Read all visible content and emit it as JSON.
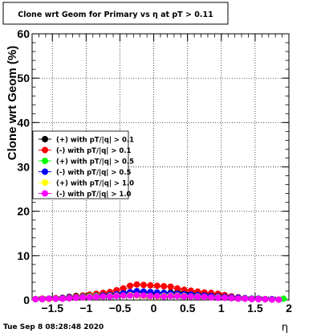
{
  "chart_data": {
    "type": "scatter",
    "title": "Clone wrt Geom for Primary vs   η at pT > 0.11",
    "xlabel": "η",
    "ylabel": "Clone wrt Geom (%)",
    "xlim": [
      -1.8,
      2.0
    ],
    "ylim": [
      0,
      60
    ],
    "x_ticks": [
      -1.5,
      -1,
      -0.5,
      0,
      0.5,
      1,
      1.5,
      2
    ],
    "x_tick_labels": [
      "−1.5",
      "−1",
      "−0.5",
      "0",
      "0.5",
      "1",
      "1.5",
      "2"
    ],
    "y_ticks": [
      0,
      10,
      20,
      30,
      40,
      50,
      60
    ],
    "y_tick_labels": [
      "0",
      "10",
      "20",
      "30",
      "40",
      "50",
      "60"
    ],
    "grid": true,
    "legend_position": "middle-left",
    "timestamp": "Tue Sep  8 08:28:48 2020",
    "series": [
      {
        "name": "(+) with pT/|q| > 0.1",
        "color": "#000000",
        "x": [
          -1.75,
          -1.65,
          -1.55,
          -1.45,
          -1.35,
          -1.25,
          -1.15,
          -1.05,
          -0.95,
          -0.85,
          -0.75,
          -0.65,
          -0.55,
          -0.45,
          -0.35,
          -0.25,
          -0.15,
          -0.05,
          0.05,
          0.15,
          0.25,
          0.35,
          0.45,
          0.55,
          0.65,
          0.75,
          0.85,
          0.95,
          1.05,
          1.15,
          1.25,
          1.35,
          1.45,
          1.55,
          1.65,
          1.75,
          1.85
        ],
        "y": [
          0.2,
          0.3,
          0.3,
          0.4,
          0.5,
          0.7,
          0.9,
          1.0,
          1.1,
          1.2,
          1.3,
          1.4,
          1.5,
          1.6,
          1.7,
          1.8,
          1.7,
          1.6,
          1.5,
          1.6,
          1.7,
          1.8,
          1.7,
          1.6,
          1.5,
          1.4,
          1.3,
          1.2,
          1.0,
          0.8,
          0.6,
          0.4,
          0.3,
          0.3,
          0.2,
          0.1,
          0.1
        ]
      },
      {
        "name": "(-) with pT/|q| > 0.1",
        "color": "#ff0000",
        "x": [
          -1.75,
          -1.65,
          -1.55,
          -1.45,
          -1.35,
          -1.25,
          -1.15,
          -1.05,
          -0.95,
          -0.85,
          -0.75,
          -0.65,
          -0.55,
          -0.45,
          -0.35,
          -0.25,
          -0.15,
          -0.05,
          0.05,
          0.15,
          0.25,
          0.35,
          0.45,
          0.55,
          0.65,
          0.75,
          0.85,
          0.95,
          1.05,
          1.15,
          1.25,
          1.35,
          1.45,
          1.55,
          1.65,
          1.75,
          1.85
        ],
        "y": [
          0.2,
          0.3,
          0.3,
          0.4,
          0.5,
          0.6,
          0.8,
          1.0,
          1.2,
          1.4,
          1.6,
          1.8,
          2.2,
          2.6,
          3.2,
          3.5,
          3.4,
          3.3,
          3.2,
          3.1,
          3.0,
          2.6,
          2.3,
          2.1,
          1.9,
          1.7,
          1.6,
          1.4,
          1.1,
          0.8,
          0.6,
          0.4,
          0.3,
          0.3,
          0.2,
          0.2,
          0.1
        ]
      },
      {
        "name": "(+) with pT/|q| > 0.5",
        "color": "#00ff00",
        "x": [
          -1.75,
          -1.65,
          -1.55,
          -1.45,
          -1.35,
          -1.25,
          -1.15,
          -1.05,
          -0.95,
          -0.85,
          -0.75,
          -0.65,
          -0.55,
          -0.45,
          -0.35,
          -0.25,
          -0.15,
          -0.05,
          0.05,
          0.15,
          0.25,
          0.35,
          0.45,
          0.55,
          0.65,
          0.75,
          0.85,
          0.95,
          1.05,
          1.15,
          1.25,
          1.35,
          1.45,
          1.55,
          1.65,
          1.75,
          1.92
        ],
        "y": [
          0.2,
          0.2,
          0.3,
          0.3,
          0.4,
          0.5,
          0.6,
          0.8,
          0.9,
          1.0,
          1.0,
          1.1,
          1.2,
          1.2,
          1.3,
          1.2,
          1.1,
          1.0,
          1.0,
          1.1,
          1.2,
          1.2,
          1.1,
          1.0,
          1.0,
          0.9,
          0.8,
          0.7,
          0.6,
          0.5,
          0.4,
          0.3,
          0.3,
          0.2,
          0.2,
          0.2,
          0.3
        ]
      },
      {
        "name": "(-) with pT/|q| > 0.5",
        "color": "#0000ff",
        "x": [
          -1.75,
          -1.65,
          -1.55,
          -1.45,
          -1.35,
          -1.25,
          -1.15,
          -1.05,
          -0.95,
          -0.85,
          -0.75,
          -0.65,
          -0.55,
          -0.45,
          -0.35,
          -0.25,
          -0.15,
          -0.05,
          0.05,
          0.15,
          0.25,
          0.35,
          0.45,
          0.55,
          0.65,
          0.75,
          0.85,
          0.95,
          1.05,
          1.15,
          1.25,
          1.35,
          1.45,
          1.55,
          1.65,
          1.75,
          1.85
        ],
        "y": [
          0.2,
          0.2,
          0.3,
          0.3,
          0.4,
          0.5,
          0.6,
          0.7,
          0.8,
          0.9,
          1.0,
          1.1,
          1.3,
          1.5,
          1.8,
          2.0,
          1.9,
          1.8,
          1.7,
          1.6,
          1.5,
          1.4,
          1.3,
          1.2,
          1.1,
          1.0,
          0.9,
          0.8,
          0.7,
          0.6,
          0.5,
          0.4,
          0.3,
          0.3,
          0.2,
          0.2,
          0.1
        ]
      },
      {
        "name": "(+) with pT/|q| > 1.0",
        "color": "#ffff00",
        "x": [
          -1.75,
          -1.65,
          -1.55,
          -1.45,
          -1.35,
          -1.25,
          -1.15,
          -1.05,
          -0.95,
          -0.85,
          -0.75,
          -0.65,
          -0.55,
          -0.45,
          -0.35,
          -0.25,
          -0.15,
          -0.05,
          0.05,
          0.15,
          0.25,
          0.35,
          0.45,
          0.55,
          0.65,
          0.75,
          0.85,
          0.95,
          1.05,
          1.15,
          1.25,
          1.35,
          1.45,
          1.55,
          1.65,
          1.75,
          1.85
        ],
        "y": [
          0.2,
          0.2,
          0.2,
          0.3,
          0.3,
          0.4,
          0.5,
          0.6,
          0.7,
          0.8,
          0.8,
          0.9,
          1.0,
          1.0,
          1.1,
          1.0,
          0.9,
          0.8,
          0.8,
          0.9,
          1.0,
          1.0,
          0.9,
          0.8,
          0.8,
          0.7,
          0.6,
          0.6,
          0.5,
          0.4,
          0.3,
          0.3,
          0.2,
          0.2,
          0.2,
          0.1,
          0.1
        ]
      },
      {
        "name": "(-) with pT/|q| > 1.0",
        "color": "#ff00ff",
        "x": [
          -1.75,
          -1.65,
          -1.55,
          -1.45,
          -1.35,
          -1.25,
          -1.15,
          -1.05,
          -0.95,
          -0.85,
          -0.75,
          -0.65,
          -0.55,
          -0.45,
          -0.35,
          -0.25,
          -0.15,
          -0.05,
          0.05,
          0.15,
          0.25,
          0.35,
          0.45,
          0.55,
          0.65,
          0.75,
          0.85,
          0.95,
          1.05,
          1.15,
          1.25,
          1.35,
          1.45,
          1.55,
          1.65,
          1.75,
          1.85
        ],
        "y": [
          0.2,
          0.2,
          0.3,
          0.3,
          0.3,
          0.4,
          0.5,
          0.6,
          0.6,
          0.7,
          0.8,
          0.8,
          0.9,
          1.0,
          1.0,
          1.1,
          1.0,
          0.9,
          0.9,
          0.8,
          0.9,
          0.9,
          0.8,
          0.8,
          0.7,
          0.7,
          0.6,
          0.5,
          0.5,
          0.4,
          0.3,
          0.3,
          0.2,
          0.2,
          0.2,
          0.1,
          0.1
        ]
      }
    ]
  }
}
